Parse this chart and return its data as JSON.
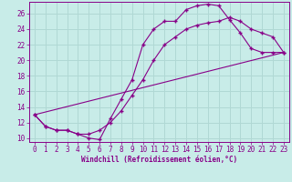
{
  "xlabel": "Windchill (Refroidissement éolien,°C)",
  "bg_color": "#c8ece8",
  "grid_color": "#b0d8d4",
  "line_color": "#880088",
  "spine_color": "#880088",
  "xlim": [
    -0.5,
    23.5
  ],
  "ylim": [
    9.5,
    27.5
  ],
  "xticks": [
    0,
    1,
    2,
    3,
    4,
    5,
    6,
    7,
    8,
    9,
    10,
    11,
    12,
    13,
    14,
    15,
    16,
    17,
    18,
    19,
    20,
    21,
    22,
    23
  ],
  "yticks": [
    10,
    12,
    14,
    16,
    18,
    20,
    22,
    24,
    26
  ],
  "line1_x": [
    0,
    1,
    2,
    3,
    4,
    5,
    6,
    7,
    8,
    9,
    10,
    11,
    12,
    13,
    14,
    15,
    16,
    17,
    18,
    19,
    20,
    21,
    22,
    23
  ],
  "line1_y": [
    13.0,
    11.5,
    11.0,
    11.0,
    10.5,
    10.0,
    9.8,
    12.5,
    15.0,
    17.5,
    22.0,
    24.0,
    25.0,
    25.0,
    26.5,
    27.0,
    27.2,
    27.0,
    25.2,
    23.5,
    21.5,
    21.0,
    21.0,
    21.0
  ],
  "line2_x": [
    0,
    1,
    2,
    3,
    4,
    5,
    6,
    7,
    8,
    9,
    10,
    11,
    12,
    13,
    14,
    15,
    16,
    17,
    18,
    19,
    20,
    21,
    22,
    23
  ],
  "line2_y": [
    13.0,
    11.5,
    11.0,
    11.0,
    10.5,
    10.5,
    11.0,
    12.0,
    13.5,
    15.5,
    17.5,
    20.0,
    22.0,
    23.0,
    24.0,
    24.5,
    24.8,
    25.0,
    25.5,
    25.0,
    24.0,
    23.5,
    23.0,
    21.0
  ],
  "line3_x": [
    0,
    23
  ],
  "line3_y": [
    13.0,
    21.0
  ],
  "xlabel_fontsize": 5.5,
  "tick_fontsize": 5.5
}
